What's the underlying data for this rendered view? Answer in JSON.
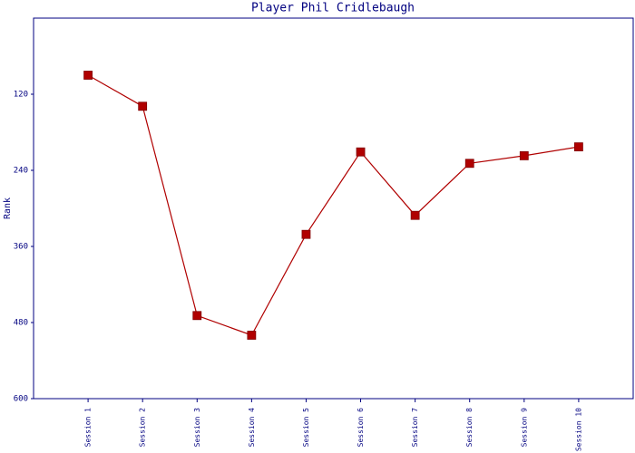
{
  "chart_data": {
    "type": "line",
    "title": "Player Phil Cridlebaugh",
    "y_label": "Rank",
    "categories": [
      "Session 1",
      "Session 2",
      "Session 3",
      "Session 4",
      "Session 5",
      "Session 6",
      "Session 7",
      "Session 8",
      "Session 9",
      "Session 10"
    ],
    "series": [
      {
        "name": "Rank",
        "color": "#b00000",
        "values": [
          90,
          139,
          469,
          500,
          341,
          211,
          311,
          229,
          217,
          203
        ]
      }
    ],
    "ylim": [
      0,
      600
    ],
    "yticks": [
      120,
      240,
      360,
      480,
      600
    ],
    "y_inverted": true,
    "grid": false
  }
}
